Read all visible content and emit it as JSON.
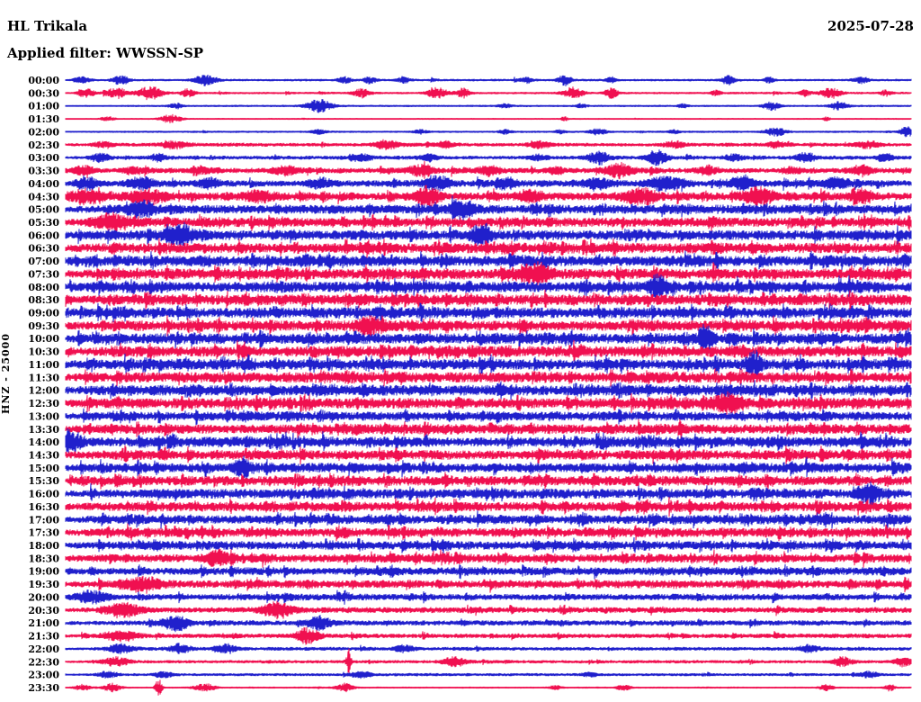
{
  "header": {
    "station": "HL Trikala",
    "filter": "Applied filter: WWSSN-SP",
    "date": "2025-07-28"
  },
  "y_axis": {
    "label": "HNZ - 25000"
  },
  "chart_data": {
    "type": "line",
    "title": "HL Trikala 24-hour helicorder (HNZ, gain 25000), filter WWSSN-SP, 2025-07-28",
    "legend_position": "none",
    "grid": false,
    "row_interval_minutes": 30,
    "rows_count": 48,
    "time_start": "00:00",
    "time_end": "23:30",
    "amplitude_units": "relative-display-px (estimated envelope, a=base noise, s=spike max, d=spike density, b=[center-fraction,width-fraction,amplitude] bursts)",
    "colors": {
      "blue": "#2020cc",
      "red": "#f01050"
    },
    "rows": [
      {
        "t": "00:00",
        "c": "blue",
        "a": 0.7,
        "s": 3,
        "d": 0.004,
        "b": [
          [
            0.02,
            0.01,
            3
          ],
          [
            0.065,
            0.01,
            4
          ],
          [
            0.165,
            0.012,
            5
          ],
          [
            0.33,
            0.008,
            3
          ],
          [
            0.36,
            0.008,
            3
          ],
          [
            0.4,
            0.008,
            3
          ],
          [
            0.545,
            0.006,
            3
          ],
          [
            0.59,
            0.008,
            5
          ],
          [
            0.645,
            0.006,
            3
          ],
          [
            0.784,
            0.008,
            4
          ],
          [
            0.832,
            0.006,
            3
          ],
          [
            0.94,
            0.01,
            3
          ]
        ]
      },
      {
        "t": "00:30",
        "c": "red",
        "a": 0.7,
        "s": 3,
        "d": 0.004,
        "b": [
          [
            0.025,
            0.01,
            4
          ],
          [
            0.06,
            0.012,
            5
          ],
          [
            0.1,
            0.015,
            6
          ],
          [
            0.145,
            0.008,
            4
          ],
          [
            0.35,
            0.01,
            4
          ],
          [
            0.44,
            0.012,
            5
          ],
          [
            0.47,
            0.008,
            4
          ],
          [
            0.6,
            0.012,
            5
          ],
          [
            0.645,
            0.008,
            5
          ],
          [
            0.77,
            0.006,
            3
          ],
          [
            0.875,
            0.006,
            3
          ],
          [
            0.905,
            0.012,
            5
          ],
          [
            0.97,
            0.006,
            3
          ]
        ]
      },
      {
        "t": "01:00",
        "c": "blue",
        "a": 0.6,
        "s": 2,
        "d": 0.003,
        "b": [
          [
            0.13,
            0.008,
            2
          ],
          [
            0.3,
            0.015,
            6
          ],
          [
            0.52,
            0.008,
            2
          ],
          [
            0.61,
            0.006,
            2
          ],
          [
            0.73,
            0.006,
            2
          ],
          [
            0.835,
            0.01,
            4
          ],
          [
            0.915,
            0.01,
            4
          ]
        ]
      },
      {
        "t": "01:30",
        "c": "red",
        "a": 0.45,
        "s": 1.5,
        "d": 0.002,
        "b": [
          [
            0.05,
            0.008,
            2
          ],
          [
            0.125,
            0.012,
            4
          ],
          [
            0.59,
            0.004,
            2
          ],
          [
            0.9,
            0.004,
            2
          ]
        ]
      },
      {
        "t": "02:00",
        "c": "blue",
        "a": 0.6,
        "s": 2,
        "d": 0.004,
        "b": [
          [
            0.3,
            0.01,
            2
          ],
          [
            0.42,
            0.008,
            2
          ],
          [
            0.52,
            0.008,
            2
          ],
          [
            0.585,
            0.006,
            2
          ],
          [
            0.63,
            0.01,
            3
          ],
          [
            0.72,
            0.006,
            2
          ],
          [
            0.84,
            0.012,
            4
          ],
          [
            0.995,
            0.008,
            5
          ]
        ]
      },
      {
        "t": "02:30",
        "c": "red",
        "a": 1.2,
        "s": 3,
        "d": 0.01,
        "b": [
          [
            0.045,
            0.012,
            3
          ],
          [
            0.13,
            0.015,
            3
          ],
          [
            0.38,
            0.015,
            4
          ],
          [
            0.45,
            0.01,
            3
          ],
          [
            0.56,
            0.012,
            3
          ],
          [
            0.72,
            0.012,
            3
          ],
          [
            0.84,
            0.01,
            3
          ],
          [
            0.95,
            0.015,
            3
          ]
        ]
      },
      {
        "t": "03:00",
        "c": "blue",
        "a": 1.3,
        "s": 4,
        "d": 0.012,
        "b": [
          [
            0.04,
            0.01,
            4
          ],
          [
            0.11,
            0.01,
            3
          ],
          [
            0.35,
            0.012,
            3
          ],
          [
            0.43,
            0.01,
            3
          ],
          [
            0.56,
            0.01,
            3
          ],
          [
            0.63,
            0.012,
            6
          ],
          [
            0.7,
            0.012,
            7
          ],
          [
            0.79,
            0.01,
            3
          ],
          [
            0.875,
            0.012,
            4
          ],
          [
            0.97,
            0.01,
            3
          ]
        ]
      },
      {
        "t": "03:30",
        "c": "red",
        "a": 1.8,
        "s": 5,
        "d": 0.02,
        "b": [
          [
            0.02,
            0.012,
            4
          ],
          [
            0.08,
            0.012,
            3
          ],
          [
            0.16,
            0.012,
            3
          ],
          [
            0.26,
            0.015,
            4
          ],
          [
            0.42,
            0.015,
            5
          ],
          [
            0.5,
            0.012,
            4
          ],
          [
            0.58,
            0.01,
            3
          ],
          [
            0.655,
            0.015,
            6
          ],
          [
            0.76,
            0.012,
            4
          ],
          [
            0.86,
            0.012,
            3
          ],
          [
            0.94,
            0.012,
            4
          ]
        ]
      },
      {
        "t": "04:00",
        "c": "blue",
        "a": 2.3,
        "s": 6,
        "d": 0.025,
        "b": [
          [
            0.025,
            0.015,
            5
          ],
          [
            0.09,
            0.015,
            5
          ],
          [
            0.17,
            0.012,
            4
          ],
          [
            0.3,
            0.015,
            4
          ],
          [
            0.44,
            0.015,
            6
          ],
          [
            0.52,
            0.012,
            4
          ],
          [
            0.63,
            0.015,
            5
          ],
          [
            0.71,
            0.02,
            6
          ],
          [
            0.8,
            0.015,
            5
          ],
          [
            0.91,
            0.015,
            5
          ]
        ]
      },
      {
        "t": "04:30",
        "c": "red",
        "a": 2.8,
        "s": 7,
        "d": 0.03,
        "b": [
          [
            0.02,
            0.02,
            6
          ],
          [
            0.1,
            0.02,
            6
          ],
          [
            0.23,
            0.015,
            5
          ],
          [
            0.428,
            0.015,
            8
          ],
          [
            0.55,
            0.015,
            5
          ],
          [
            0.68,
            0.02,
            6
          ],
          [
            0.82,
            0.02,
            6
          ],
          [
            0.94,
            0.015,
            5
          ]
        ]
      },
      {
        "t": "05:00",
        "c": "blue",
        "a": 3.2,
        "s": 8,
        "d": 0.035,
        "b": [
          [
            0.09,
            0.015,
            6
          ],
          [
            0.47,
            0.015,
            7
          ]
        ]
      },
      {
        "t": "05:30",
        "c": "red",
        "a": 3.4,
        "s": 8,
        "d": 0.04,
        "b": [
          [
            0.055,
            0.02,
            7
          ]
        ]
      },
      {
        "t": "06:00",
        "c": "blue",
        "a": 3.6,
        "s": 9,
        "d": 0.04,
        "b": [
          [
            0.135,
            0.015,
            9
          ],
          [
            0.49,
            0.012,
            8
          ]
        ]
      },
      {
        "t": "06:30",
        "c": "red",
        "a": 3.8,
        "s": 9,
        "d": 0.045,
        "b": []
      },
      {
        "t": "07:00",
        "c": "blue",
        "a": 3.8,
        "s": 9,
        "d": 0.045,
        "b": []
      },
      {
        "t": "07:30",
        "c": "red",
        "a": 3.8,
        "s": 9,
        "d": 0.045,
        "b": [
          [
            0.56,
            0.015,
            8
          ]
        ]
      },
      {
        "t": "08:00",
        "c": "blue",
        "a": 3.8,
        "s": 9,
        "d": 0.045,
        "b": [
          [
            0.7,
            0.012,
            9
          ]
        ]
      },
      {
        "t": "08:30",
        "c": "red",
        "a": 3.8,
        "s": 8,
        "d": 0.045,
        "b": []
      },
      {
        "t": "09:00",
        "c": "blue",
        "a": 3.8,
        "s": 8,
        "d": 0.045,
        "b": []
      },
      {
        "t": "09:30",
        "c": "red",
        "a": 3.8,
        "s": 8,
        "d": 0.045,
        "b": [
          [
            0.36,
            0.012,
            7
          ]
        ]
      },
      {
        "t": "10:00",
        "c": "blue",
        "a": 3.8,
        "s": 9,
        "d": 0.045,
        "b": [
          [
            0.757,
            0.008,
            10
          ]
        ]
      },
      {
        "t": "10:30",
        "c": "red",
        "a": 3.8,
        "s": 8,
        "d": 0.045,
        "b": []
      },
      {
        "t": "11:00",
        "c": "blue",
        "a": 3.8,
        "s": 9,
        "d": 0.045,
        "b": [
          [
            0.813,
            0.008,
            10
          ]
        ]
      },
      {
        "t": "11:30",
        "c": "red",
        "a": 3.8,
        "s": 8,
        "d": 0.045,
        "b": []
      },
      {
        "t": "12:00",
        "c": "blue",
        "a": 3.8,
        "s": 8,
        "d": 0.045,
        "b": []
      },
      {
        "t": "12:30",
        "c": "red",
        "a": 3.8,
        "s": 8,
        "d": 0.045,
        "b": [
          [
            0.784,
            0.015,
            9
          ]
        ]
      },
      {
        "t": "13:00",
        "c": "blue",
        "a": 3.2,
        "s": 7,
        "d": 0.04,
        "b": []
      },
      {
        "t": "13:30",
        "c": "red",
        "a": 3.4,
        "s": 8,
        "d": 0.04,
        "b": []
      },
      {
        "t": "14:00",
        "c": "blue",
        "a": 3.6,
        "s": 9,
        "d": 0.04,
        "b": [
          [
            0.004,
            0.015,
            11
          ]
        ]
      },
      {
        "t": "14:30",
        "c": "red",
        "a": 3.4,
        "s": 8,
        "d": 0.04,
        "b": []
      },
      {
        "t": "15:00",
        "c": "blue",
        "a": 3.4,
        "s": 8,
        "d": 0.04,
        "b": [
          [
            0.21,
            0.01,
            9
          ]
        ]
      },
      {
        "t": "15:30",
        "c": "red",
        "a": 3.4,
        "s": 8,
        "d": 0.04,
        "b": []
      },
      {
        "t": "16:00",
        "c": "blue",
        "a": 3.4,
        "s": 8,
        "d": 0.04,
        "b": [
          [
            0.95,
            0.012,
            8
          ]
        ]
      },
      {
        "t": "16:30",
        "c": "red",
        "a": 3.4,
        "s": 8,
        "d": 0.04,
        "b": []
      },
      {
        "t": "17:00",
        "c": "blue",
        "a": 3.2,
        "s": 8,
        "d": 0.04,
        "b": []
      },
      {
        "t": "17:30",
        "c": "red",
        "a": 3.2,
        "s": 8,
        "d": 0.04,
        "b": []
      },
      {
        "t": "18:00",
        "c": "blue",
        "a": 3.0,
        "s": 7,
        "d": 0.035,
        "b": []
      },
      {
        "t": "18:30",
        "c": "red",
        "a": 3.0,
        "s": 7,
        "d": 0.035,
        "b": [
          [
            0.18,
            0.015,
            7
          ]
        ]
      },
      {
        "t": "19:00",
        "c": "blue",
        "a": 2.8,
        "s": 7,
        "d": 0.03,
        "b": []
      },
      {
        "t": "19:30",
        "c": "red",
        "a": 2.8,
        "s": 7,
        "d": 0.03,
        "b": [
          [
            0.09,
            0.02,
            6
          ]
        ]
      },
      {
        "t": "20:00",
        "c": "blue",
        "a": 2.2,
        "s": 6,
        "d": 0.025,
        "b": [
          [
            0.03,
            0.02,
            5
          ]
        ]
      },
      {
        "t": "20:30",
        "c": "red",
        "a": 2.0,
        "s": 6,
        "d": 0.02,
        "b": [
          [
            0.07,
            0.02,
            6
          ],
          [
            0.25,
            0.02,
            6
          ]
        ]
      },
      {
        "t": "21:00",
        "c": "blue",
        "a": 1.8,
        "s": 5,
        "d": 0.02,
        "b": [
          [
            0.13,
            0.015,
            7
          ],
          [
            0.3,
            0.012,
            6
          ]
        ]
      },
      {
        "t": "21:30",
        "c": "red",
        "a": 1.5,
        "s": 4,
        "d": 0.015,
        "b": [
          [
            0.065,
            0.02,
            5
          ],
          [
            0.285,
            0.012,
            7
          ]
        ]
      },
      {
        "t": "22:00",
        "c": "blue",
        "a": 1.2,
        "s": 3,
        "d": 0.01,
        "b": [
          [
            0.065,
            0.015,
            4
          ],
          [
            0.135,
            0.012,
            4
          ],
          [
            0.19,
            0.012,
            4
          ],
          [
            0.4,
            0.012,
            3
          ],
          [
            0.88,
            0.012,
            3
          ]
        ]
      },
      {
        "t": "22:30",
        "c": "red",
        "a": 1.0,
        "s": 3,
        "d": 0.008,
        "b": [
          [
            0.06,
            0.015,
            4
          ],
          [
            0.335,
            0.003,
            11
          ],
          [
            0.46,
            0.015,
            4
          ],
          [
            0.92,
            0.012,
            4
          ],
          [
            0.99,
            0.01,
            4
          ]
        ]
      },
      {
        "t": "23:00",
        "c": "blue",
        "a": 0.9,
        "s": 2.5,
        "d": 0.008,
        "b": [
          [
            0.05,
            0.012,
            3
          ],
          [
            0.115,
            0.01,
            3
          ],
          [
            0.35,
            0.012,
            3
          ],
          [
            0.62,
            0.008,
            2
          ],
          [
            0.95,
            0.01,
            3
          ]
        ]
      },
      {
        "t": "23:30",
        "c": "red",
        "a": 0.5,
        "s": 1.5,
        "d": 0.004,
        "b": [
          [
            0.02,
            0.01,
            3
          ],
          [
            0.055,
            0.01,
            4
          ],
          [
            0.11,
            0.004,
            8
          ],
          [
            0.165,
            0.012,
            4
          ],
          [
            0.33,
            0.01,
            4
          ],
          [
            0.58,
            0.008,
            2
          ],
          [
            0.66,
            0.008,
            3
          ],
          [
            0.9,
            0.008,
            3
          ],
          [
            0.975,
            0.006,
            3
          ]
        ]
      }
    ]
  }
}
